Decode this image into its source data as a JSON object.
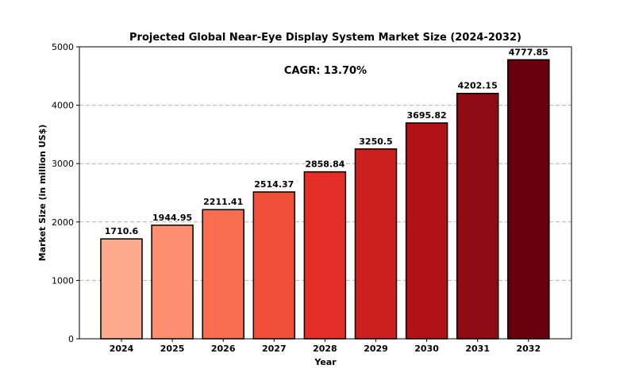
{
  "chart_data": {
    "type": "bar",
    "title": "Projected Global Near-Eye Display System Market Size (2024-2032)",
    "xlabel": "Year",
    "ylabel": "Market Size (in million US$)",
    "annotation": "CAGR: 13.70%",
    "categories": [
      "2024",
      "2025",
      "2026",
      "2027",
      "2028",
      "2029",
      "2030",
      "2031",
      "2032"
    ],
    "values": [
      1710.6,
      1944.95,
      2211.41,
      2514.37,
      2858.84,
      3250.5,
      3695.82,
      4202.15,
      4777.85
    ],
    "data_labels": [
      "1710.6",
      "1944.95",
      "2211.41",
      "2514.37",
      "2858.84",
      "3250.5",
      "3695.82",
      "4202.15",
      "4777.85"
    ],
    "colors": [
      "#fcab8f",
      "#fc8f6f",
      "#f96e51",
      "#f14f39",
      "#e32f27",
      "#cc1f1f",
      "#b11218",
      "#8f0b13",
      "#67000d"
    ],
    "ylim": [
      0,
      5000
    ],
    "yticks": [
      "0",
      "1000",
      "2000",
      "3000",
      "4000",
      "5000"
    ],
    "grid": "y-dashed",
    "legend": "none"
  }
}
